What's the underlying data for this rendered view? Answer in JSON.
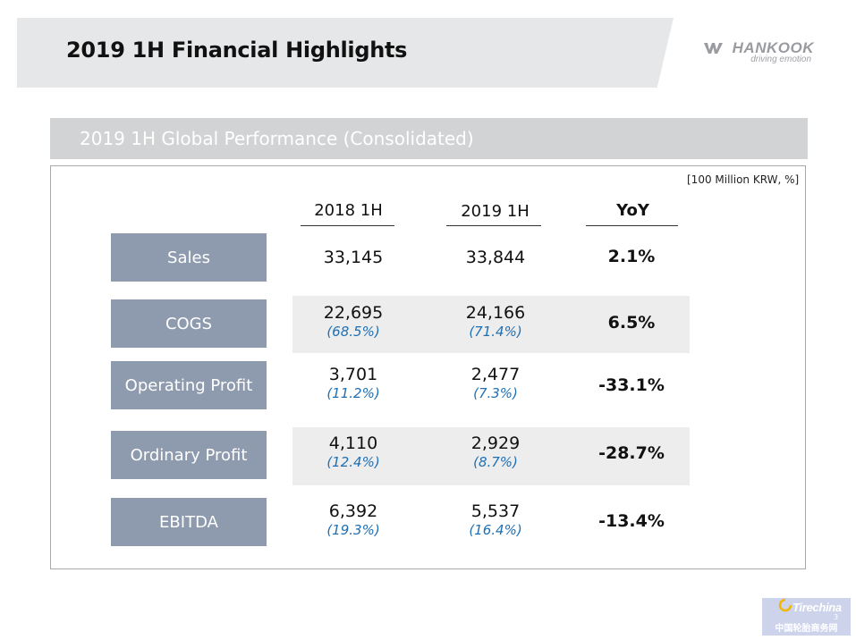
{
  "header": {
    "title": "2019 1H Financial Highlights",
    "logo_brand": "HANKOOK",
    "logo_tagline": "driving emotion"
  },
  "section": {
    "title": "2019 1H Global Performance (Consolidated)",
    "unit_note": "[100 Million KRW, %]"
  },
  "table": {
    "columns": [
      "2018 1H",
      "2019 1H",
      "YoY"
    ],
    "rows": [
      {
        "label": "Sales",
        "v2018": "33,145",
        "r2018": "",
        "v2019": "33,844",
        "r2019": "",
        "yoy": "2.1%"
      },
      {
        "label": "COGS",
        "v2018": "22,695",
        "r2018": "(68.5%)",
        "v2019": "24,166",
        "r2019": "(71.4%)",
        "yoy": "6.5%"
      },
      {
        "label": "Operating Profit",
        "v2018": "3,701",
        "r2018": "(11.2%)",
        "v2019": "2,477",
        "r2019": "(7.3%)",
        "yoy": "-33.1%"
      },
      {
        "label": "Ordinary Profit",
        "v2018": "4,110",
        "r2018": "(12.4%)",
        "v2019": "2,929",
        "r2019": "(8.7%)",
        "yoy": "-28.7%"
      },
      {
        "label": "EBITDA",
        "v2018": "6,392",
        "r2018": "(19.3%)",
        "v2019": "5,537",
        "r2019": "(16.4%)",
        "yoy": "-13.4%"
      }
    ]
  },
  "watermark": {
    "brand": "Tirechina",
    "subtitle": "中国轮胎商务网"
  },
  "page_number": "3",
  "colors": {
    "label_bg": "#8e9aae",
    "ratio_text": "#1f6fb2",
    "header_band": "#e6e7e8",
    "section_band": "#d1d3d4"
  }
}
